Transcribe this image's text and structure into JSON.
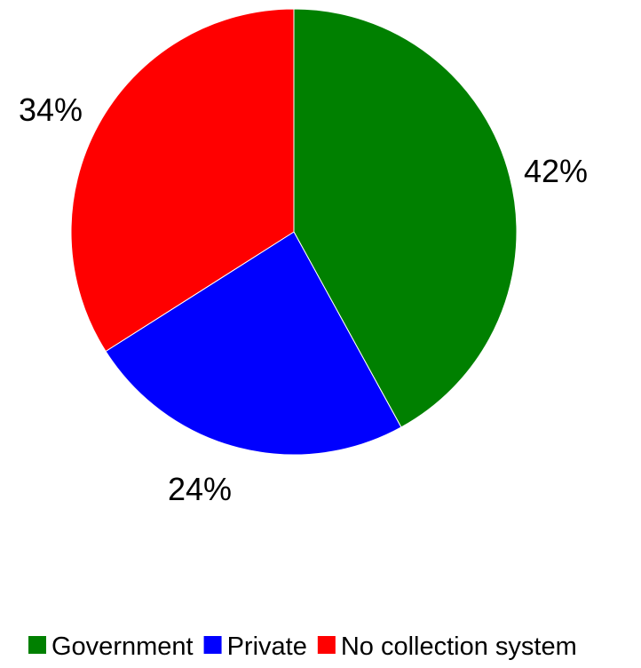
{
  "chart_data": {
    "type": "pie",
    "title": "",
    "categories": [
      "Government",
      "Private",
      "No collection system"
    ],
    "values": [
      42,
      24,
      34
    ],
    "data_labels": [
      "42%",
      "24%",
      "34%"
    ],
    "colors": [
      "#008000",
      "#0000FF",
      "#FF0000"
    ],
    "legend": {
      "placement": "bottom",
      "entries": [
        "Government",
        "Private",
        "No collection system"
      ]
    }
  }
}
